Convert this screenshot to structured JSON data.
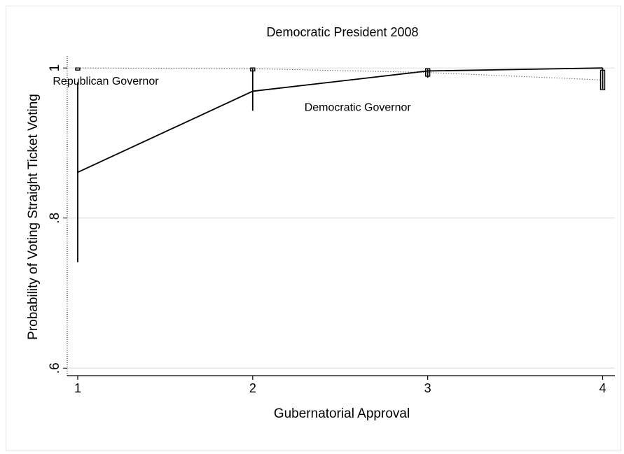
{
  "chart_data": {
    "type": "line",
    "title": "Democratic President 2008",
    "xlabel": "Gubernatorial Approval",
    "ylabel": "Probability of Voting Straight Ticket Voting",
    "x": [
      1,
      2,
      3,
      4
    ],
    "xticks": [
      "1",
      "2",
      "3",
      "4"
    ],
    "yticks": [
      {
        "value": 0.6,
        "label": ".6"
      },
      {
        "value": 0.8,
        "label": ".8"
      },
      {
        "value": 1.0,
        "label": "1"
      }
    ],
    "xlim": [
      0.94,
      4.07
    ],
    "ylim": [
      0.59,
      1.016
    ],
    "grid": true,
    "series": [
      {
        "name": "Democratic Governor",
        "style": "solid",
        "values": [
          0.861,
          0.969,
          0.996,
          1.0
        ],
        "ci_low": [
          0.741,
          0.943,
          0.987,
          0.972
        ],
        "ci_high": [
          0.981,
          0.999,
          0.999,
          1.0
        ]
      },
      {
        "name": "Republican Governor",
        "style": "dotted",
        "values": [
          1.0,
          0.999,
          0.994,
          0.984
        ],
        "ci_low": [
          0.998,
          0.996,
          0.989,
          0.971
        ],
        "ci_high": [
          1.0,
          1.0,
          0.999,
          0.997
        ]
      }
    ],
    "annotations": [
      {
        "text": "Republican Governor",
        "x": 1.16,
        "y": 0.978
      },
      {
        "text": "Democratic Governor",
        "x": 2.6,
        "y": 0.943
      }
    ]
  }
}
